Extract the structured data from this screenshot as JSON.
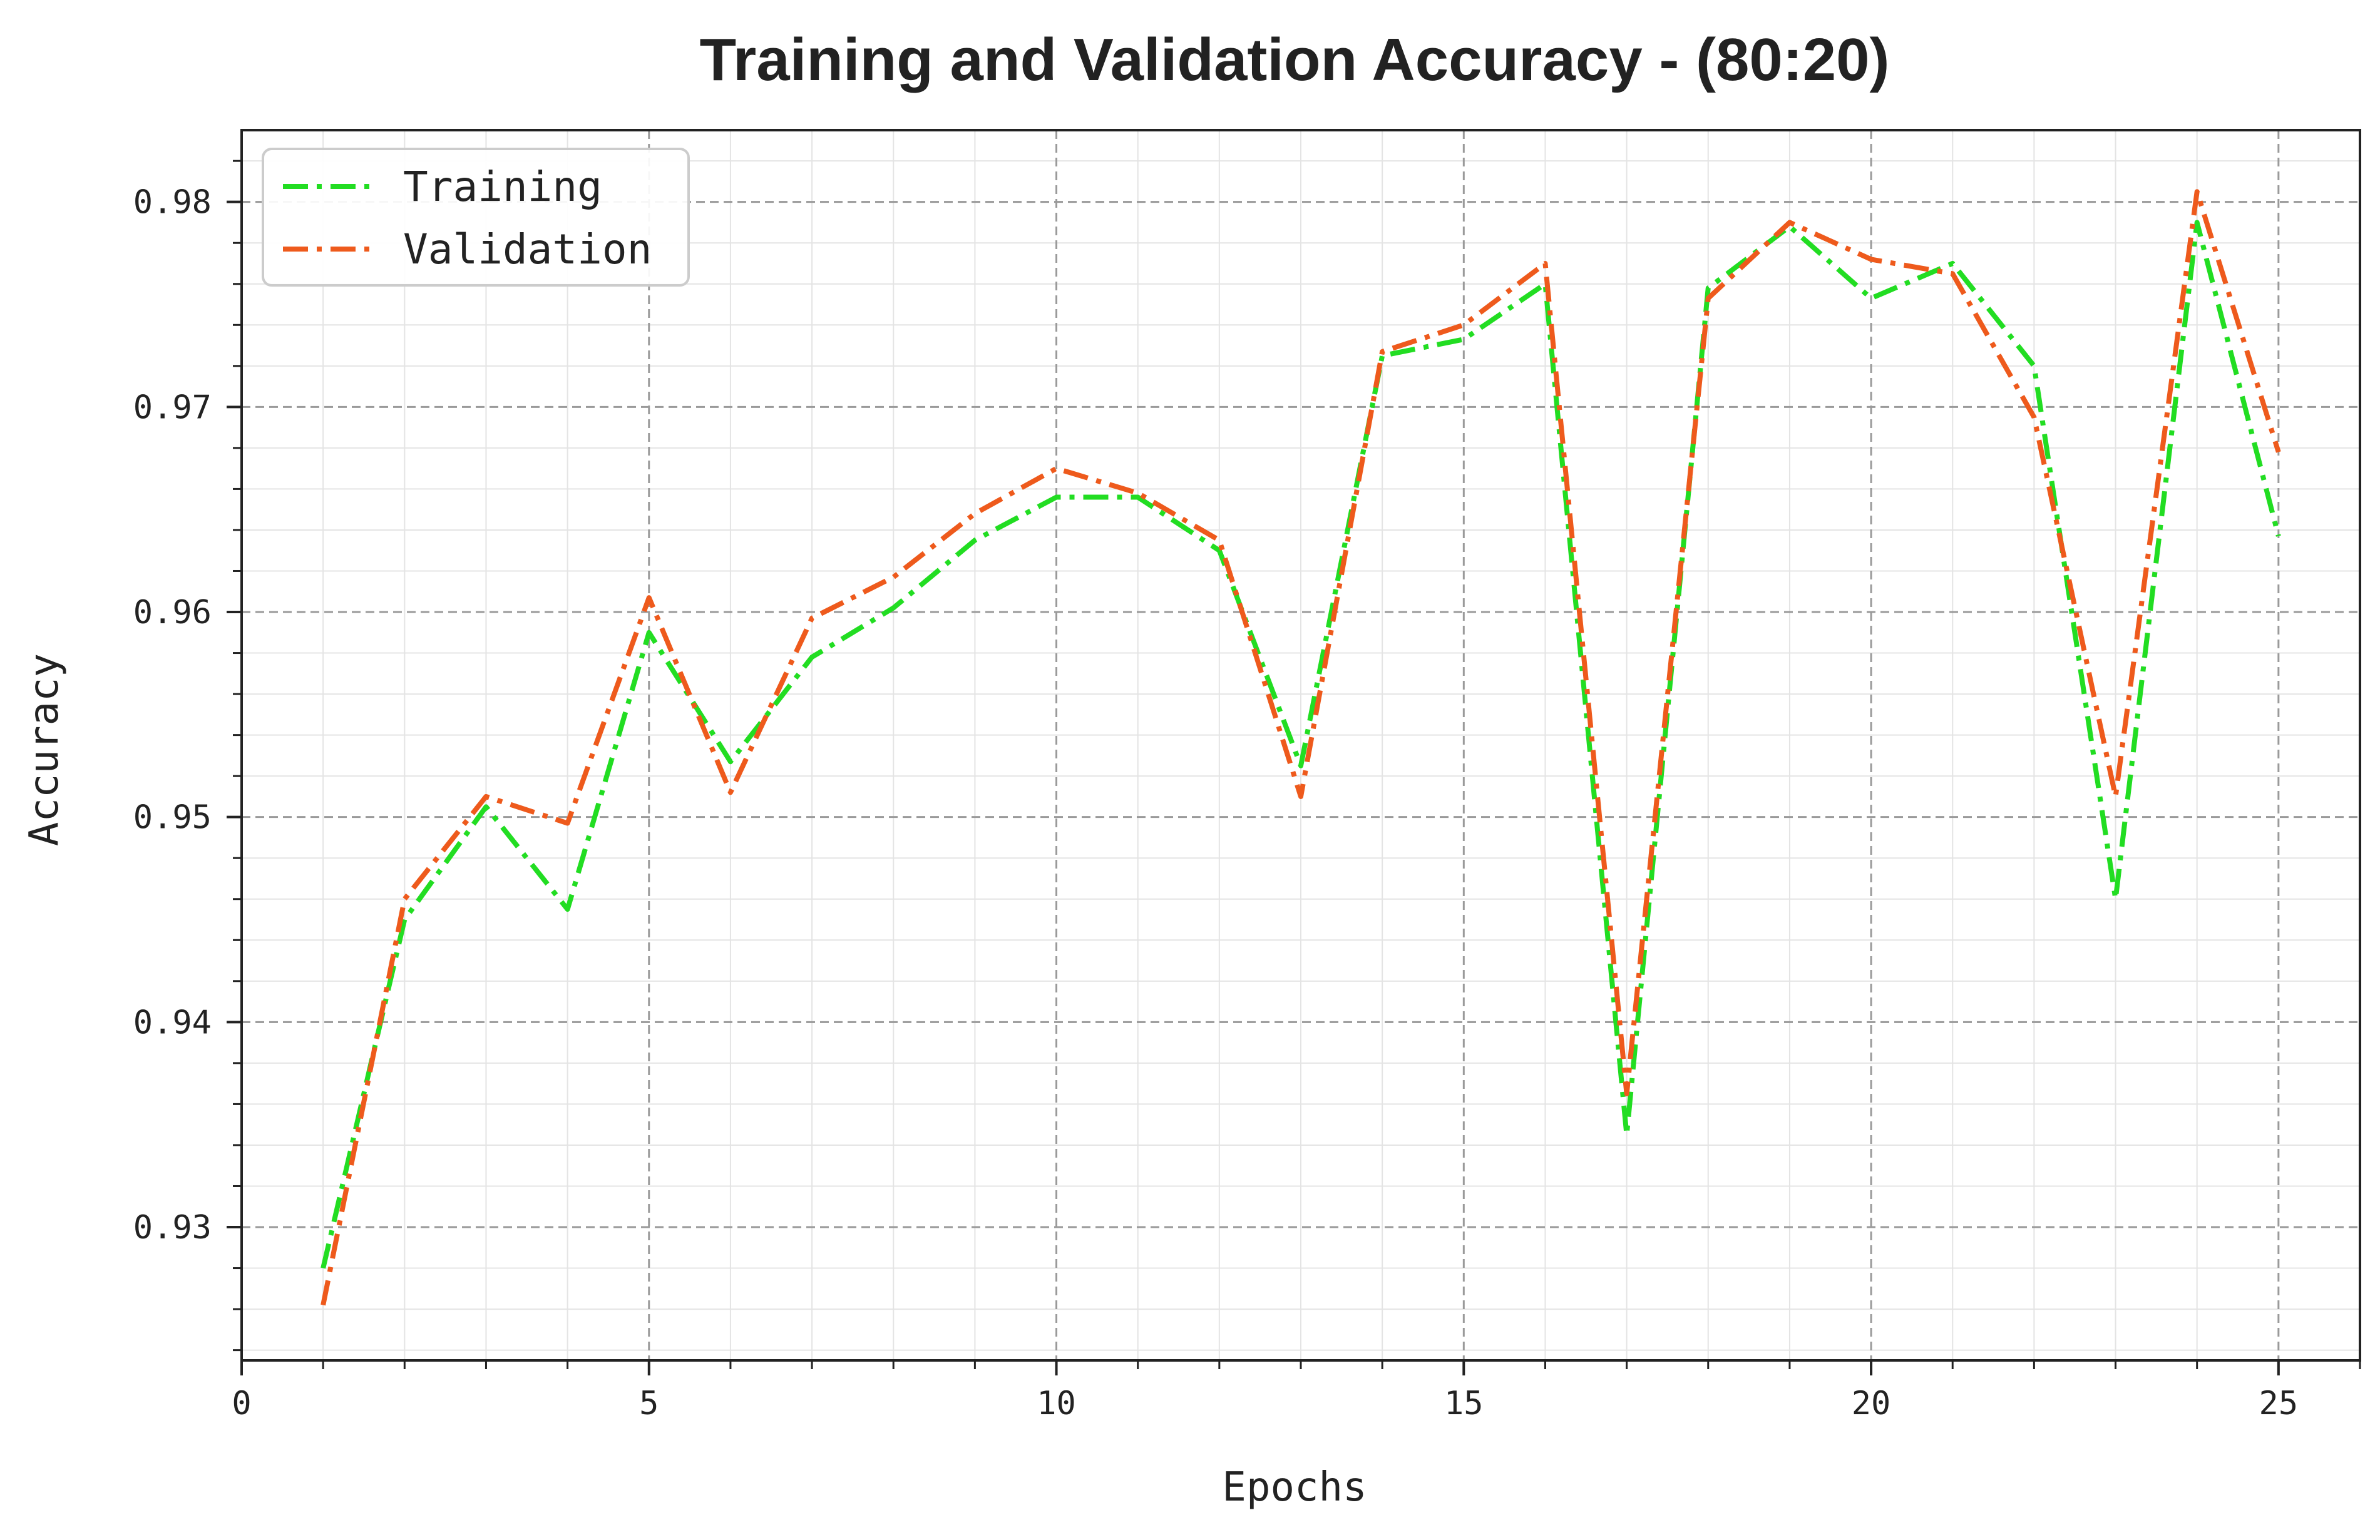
{
  "chart_data": {
    "type": "line",
    "title": "Training and Validation Accuracy - (80:20)",
    "xlabel": "Epochs",
    "ylabel": "Accuracy",
    "xlim": [
      0,
      26
    ],
    "ylim": [
      0.9235,
      0.9835
    ],
    "x_ticks": [
      0,
      5,
      10,
      15,
      20,
      25
    ],
    "y_ticks": [
      0.93,
      0.94,
      0.95,
      0.96,
      0.97,
      0.98
    ],
    "x_tick_labels": [
      "0",
      "5",
      "10",
      "15",
      "20",
      "25"
    ],
    "y_tick_labels": [
      "0.93",
      "0.94",
      "0.95",
      "0.96",
      "0.97",
      "0.98"
    ],
    "grid": true,
    "minor_grid": true,
    "legend_position": "top-left",
    "x": [
      1,
      2,
      3,
      4,
      5,
      6,
      7,
      8,
      9,
      10,
      11,
      12,
      13,
      14,
      15,
      16,
      17,
      18,
      19,
      20,
      21,
      22,
      23,
      24,
      25
    ],
    "series": [
      {
        "name": "Training",
        "color": "#22dd22",
        "line_style": "dash-dot",
        "values": [
          0.928,
          0.945,
          0.9505,
          0.9455,
          0.959,
          0.9527,
          0.9578,
          0.9602,
          0.9635,
          0.9656,
          0.9656,
          0.963,
          0.9525,
          0.9725,
          0.9733,
          0.976,
          0.9345,
          0.9758,
          0.9788,
          0.9753,
          0.977,
          0.972,
          0.946,
          0.979,
          0.9637
        ]
      },
      {
        "name": "Validation",
        "color": "#ee5a1c",
        "line_style": "dash-dot",
        "values": [
          0.9262,
          0.946,
          0.951,
          0.9497,
          0.9607,
          0.9512,
          0.9597,
          0.9617,
          0.9648,
          0.967,
          0.9658,
          0.9635,
          0.951,
          0.9727,
          0.974,
          0.977,
          0.9365,
          0.9753,
          0.979,
          0.9772,
          0.9765,
          0.9695,
          0.951,
          0.9805,
          0.9678
        ]
      }
    ]
  }
}
